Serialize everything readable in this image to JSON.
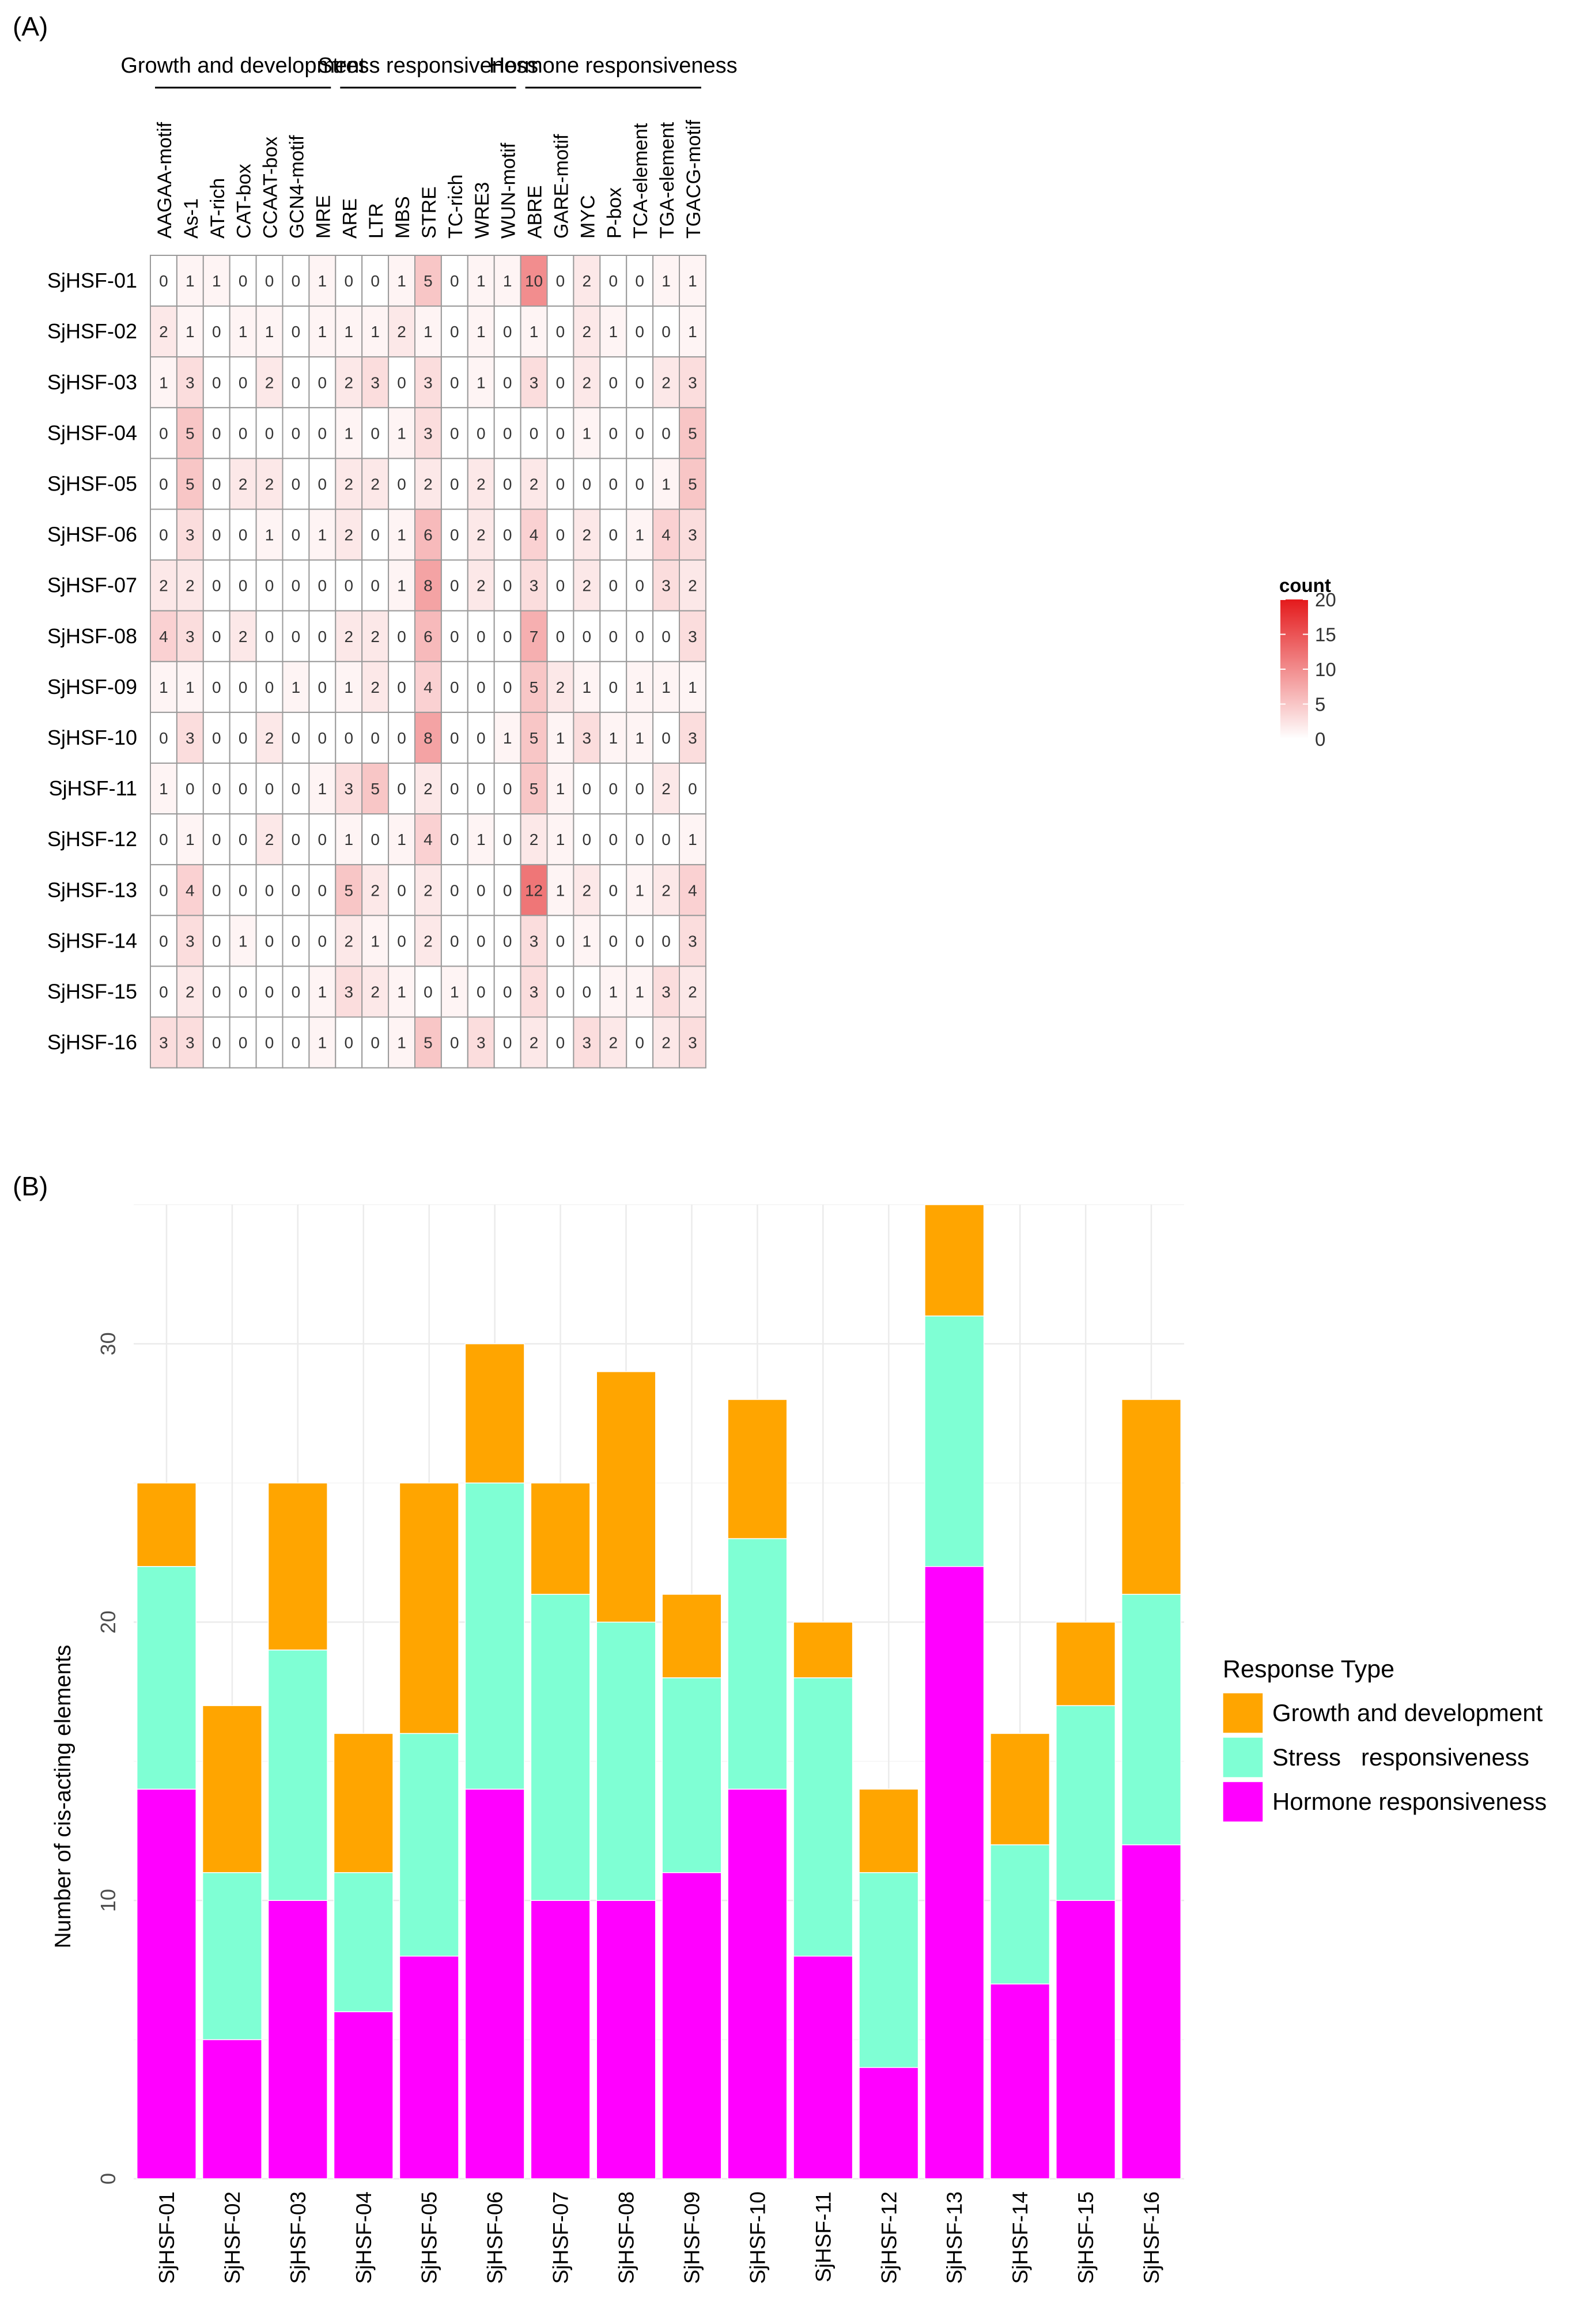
{
  "chart_data": [
    {
      "type": "heatmap",
      "panel_label": "(A)",
      "rows": [
        "SjHSF-01",
        "SjHSF-02",
        "SjHSF-03",
        "SjHSF-04",
        "SjHSF-05",
        "SjHSF-06",
        "SjHSF-07",
        "SjHSF-08",
        "SjHSF-09",
        "SjHSF-10",
        "SjHSF-11",
        "SjHSF-12",
        "SjHSF-13",
        "SjHSF-14",
        "SjHSF-15",
        "SjHSF-16"
      ],
      "columns": [
        "AAGAA-motif",
        "As-1",
        "AT-rich",
        "CAT-box",
        "CCAAT-box",
        "GCN4-motif",
        "MRE",
        "ARE",
        "LTR",
        "MBS",
        "STRE",
        "TC-rich",
        "WRE3",
        "WUN-motif",
        "ABRE",
        "GARE-motif",
        "MYC",
        "P-box",
        "TCA-element",
        "TGA-element",
        "TGACG-motif"
      ],
      "groups": [
        {
          "label": "Growth and development",
          "start": 0,
          "end": 6
        },
        {
          "label": "Stress  responsiveness",
          "start": 7,
          "end": 13
        },
        {
          "label": "Hormone  responsiveness",
          "start": 14,
          "end": 20
        }
      ],
      "values": [
        [
          0,
          1,
          1,
          0,
          0,
          0,
          1,
          0,
          0,
          1,
          5,
          0,
          1,
          1,
          10,
          0,
          2,
          0,
          0,
          1,
          1
        ],
        [
          2,
          1,
          0,
          1,
          1,
          0,
          1,
          1,
          1,
          2,
          1,
          0,
          1,
          0,
          1,
          0,
          2,
          1,
          0,
          0,
          1
        ],
        [
          1,
          3,
          0,
          0,
          2,
          0,
          0,
          2,
          3,
          0,
          3,
          0,
          1,
          0,
          3,
          0,
          2,
          0,
          0,
          2,
          3
        ],
        [
          0,
          5,
          0,
          0,
          0,
          0,
          0,
          1,
          0,
          1,
          3,
          0,
          0,
          0,
          0,
          0,
          1,
          0,
          0,
          0,
          5
        ],
        [
          0,
          5,
          0,
          2,
          2,
          0,
          0,
          2,
          2,
          0,
          2,
          0,
          2,
          0,
          2,
          0,
          0,
          0,
          0,
          1,
          5
        ],
        [
          0,
          3,
          0,
          0,
          1,
          0,
          1,
          2,
          0,
          1,
          6,
          0,
          2,
          0,
          4,
          0,
          2,
          0,
          1,
          4,
          3
        ],
        [
          2,
          2,
          0,
          0,
          0,
          0,
          0,
          0,
          0,
          1,
          8,
          0,
          2,
          0,
          3,
          0,
          2,
          0,
          0,
          3,
          2
        ],
        [
          4,
          3,
          0,
          2,
          0,
          0,
          0,
          2,
          2,
          0,
          6,
          0,
          0,
          0,
          7,
          0,
          0,
          0,
          0,
          0,
          3
        ],
        [
          1,
          1,
          0,
          0,
          0,
          1,
          0,
          1,
          2,
          0,
          4,
          0,
          0,
          0,
          5,
          2,
          1,
          0,
          1,
          1,
          1
        ],
        [
          0,
          3,
          0,
          0,
          2,
          0,
          0,
          0,
          0,
          0,
          8,
          0,
          0,
          1,
          5,
          1,
          3,
          1,
          1,
          0,
          3
        ],
        [
          1,
          0,
          0,
          0,
          0,
          0,
          1,
          3,
          5,
          0,
          2,
          0,
          0,
          0,
          5,
          1,
          0,
          0,
          0,
          2,
          0
        ],
        [
          0,
          1,
          0,
          0,
          2,
          0,
          0,
          1,
          0,
          1,
          4,
          0,
          1,
          0,
          2,
          1,
          0,
          0,
          0,
          0,
          1
        ],
        [
          0,
          4,
          0,
          0,
          0,
          0,
          0,
          5,
          2,
          0,
          2,
          0,
          0,
          0,
          12,
          1,
          2,
          0,
          1,
          2,
          4
        ],
        [
          0,
          3,
          0,
          1,
          0,
          0,
          0,
          2,
          1,
          0,
          2,
          0,
          0,
          0,
          3,
          0,
          1,
          0,
          0,
          0,
          3
        ],
        [
          0,
          2,
          0,
          0,
          0,
          0,
          1,
          3,
          2,
          1,
          0,
          1,
          0,
          0,
          3,
          0,
          0,
          1,
          1,
          3,
          2
        ],
        [
          3,
          3,
          0,
          0,
          0,
          0,
          1,
          0,
          0,
          1,
          5,
          0,
          3,
          0,
          2,
          0,
          3,
          2,
          0,
          2,
          3
        ]
      ],
      "legend": {
        "title": "count",
        "range": [
          0,
          20
        ],
        "ticks": [
          20,
          15,
          10,
          5,
          0
        ],
        "low_color": "#ffffff",
        "high_color": "#e41a1c"
      }
    },
    {
      "type": "bar",
      "stacked": true,
      "panel_label": "(B)",
      "categories": [
        "SjHSF-01",
        "SjHSF-02",
        "SjHSF-03",
        "SjHSF-04",
        "SjHSF-05",
        "SjHSF-06",
        "SjHSF-07",
        "SjHSF-08",
        "SjHSF-09",
        "SjHSF-10",
        "SjHSF-11",
        "SjHSF-12",
        "SjHSF-13",
        "SjHSF-14",
        "SjHSF-15",
        "SjHSF-16"
      ],
      "series": [
        {
          "name": "Hormone responsiveness",
          "color": "#ff00ff",
          "values": [
            14,
            5,
            10,
            6,
            8,
            14,
            10,
            10,
            11,
            14,
            8,
            4,
            22,
            7,
            10,
            12
          ]
        },
        {
          "name": "Stress   responsiveness",
          "color": "#7fffd4",
          "values": [
            8,
            6,
            9,
            5,
            8,
            11,
            11,
            10,
            7,
            9,
            10,
            7,
            9,
            5,
            7,
            9
          ]
        },
        {
          "name": "Growth and development",
          "color": "#ffa500",
          "values": [
            3,
            6,
            6,
            5,
            9,
            5,
            4,
            9,
            3,
            5,
            2,
            3,
            4,
            4,
            3,
            7
          ]
        }
      ],
      "legend_order": [
        "Growth and development",
        "Stress   responsiveness",
        "Hormone responsiveness"
      ],
      "legend_title": "Response Type",
      "ylabel": "Number of cis-acting elements",
      "xlabel": "",
      "ylim": [
        0,
        35
      ],
      "yticks": [
        0,
        10,
        20,
        30
      ],
      "grid": true
    }
  ]
}
